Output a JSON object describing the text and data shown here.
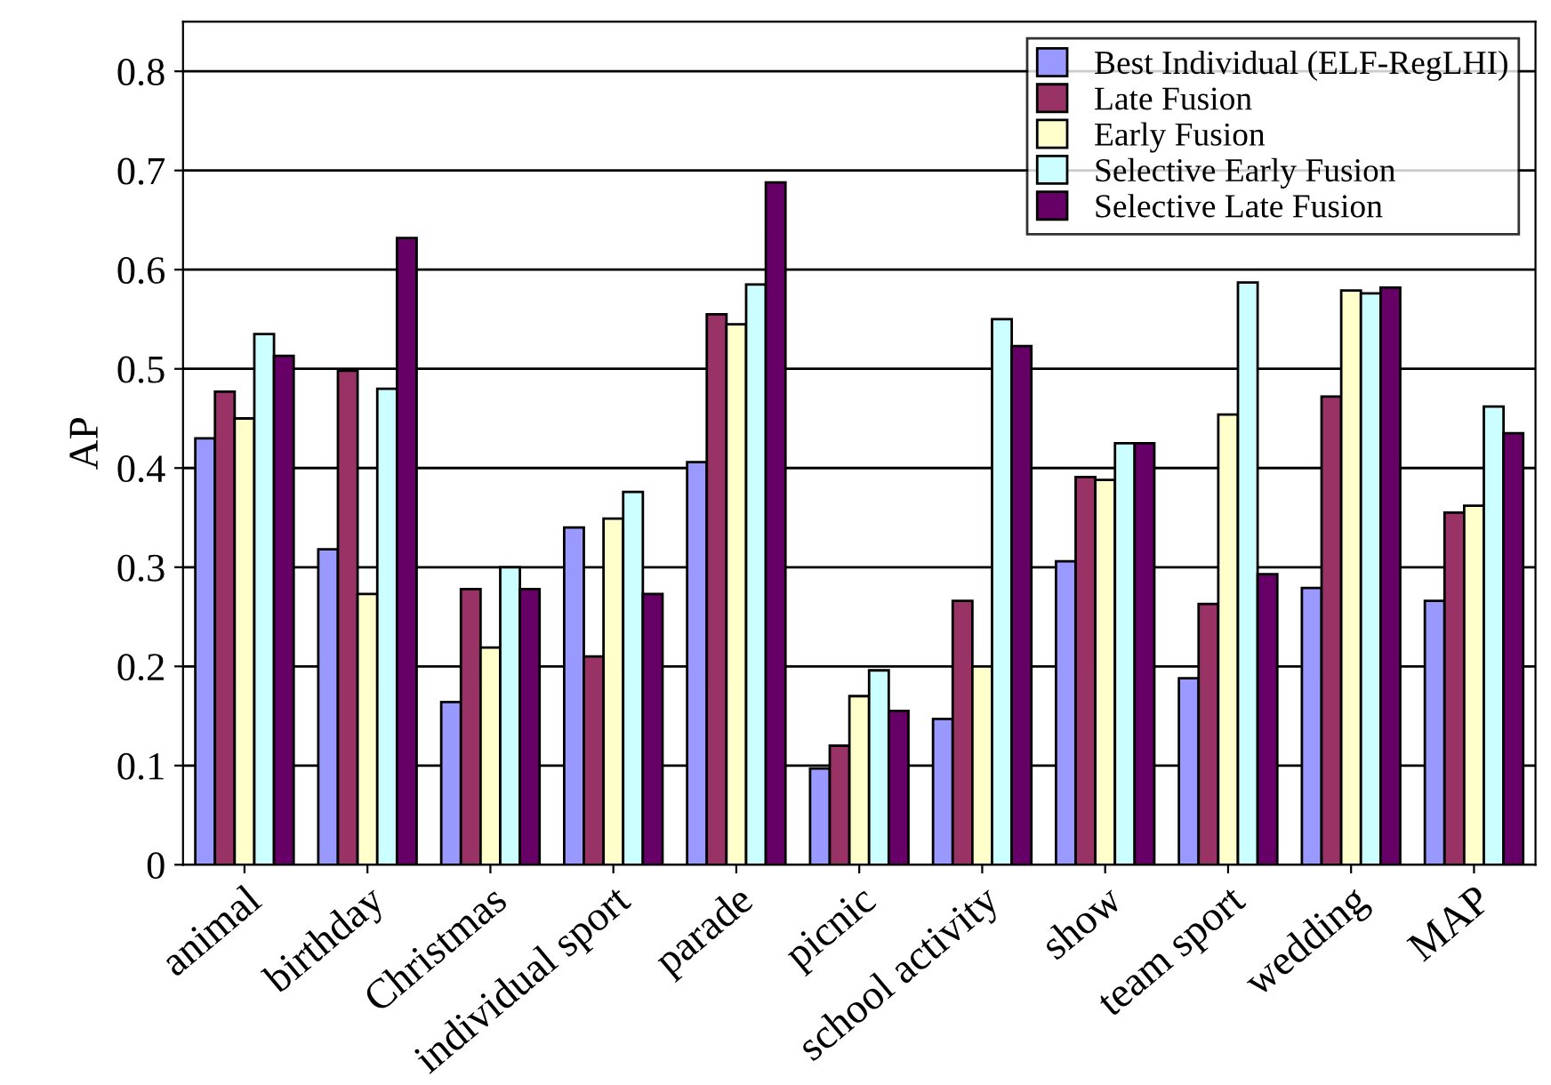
{
  "chart_data": {
    "type": "bar",
    "ylabel": "AP",
    "categories": [
      "animal",
      "birthday",
      "Christmas",
      "individual sport",
      "parade",
      "picnic",
      "school activity",
      "show",
      "team sport",
      "wedding",
      "MAP"
    ],
    "series": [
      {
        "name": "Best Individual (ELF-RegLHI)",
        "color": "#9999ff",
        "values": [
          0.43,
          0.318,
          0.164,
          0.34,
          0.406,
          0.097,
          0.147,
          0.306,
          0.188,
          0.279,
          0.266
        ]
      },
      {
        "name": "Late Fusion",
        "color": "#993366",
        "values": [
          0.477,
          0.498,
          0.278,
          0.21,
          0.555,
          0.12,
          0.266,
          0.391,
          0.263,
          0.472,
          0.355
        ]
      },
      {
        "name": "Early Fusion",
        "color": "#ffffcc",
        "values": [
          0.45,
          0.273,
          0.219,
          0.349,
          0.545,
          0.17,
          0.2,
          0.388,
          0.454,
          0.579,
          0.362
        ]
      },
      {
        "name": "Selective Early Fusion",
        "color": "#ccffff",
        "values": [
          0.535,
          0.48,
          0.3,
          0.376,
          0.585,
          0.196,
          0.55,
          0.425,
          0.587,
          0.576,
          0.462
        ]
      },
      {
        "name": "Selective Late Fusion",
        "color": "#660066",
        "values": [
          0.513,
          0.632,
          0.278,
          0.273,
          0.688,
          0.155,
          0.523,
          0.425,
          0.293,
          0.582,
          0.435
        ]
      }
    ],
    "ylim": [
      0,
      0.85
    ],
    "yticks": [
      0,
      0.1,
      0.2,
      0.3,
      0.4,
      0.5,
      0.6,
      0.7,
      0.8
    ],
    "grid": "y",
    "legend": "top right"
  }
}
